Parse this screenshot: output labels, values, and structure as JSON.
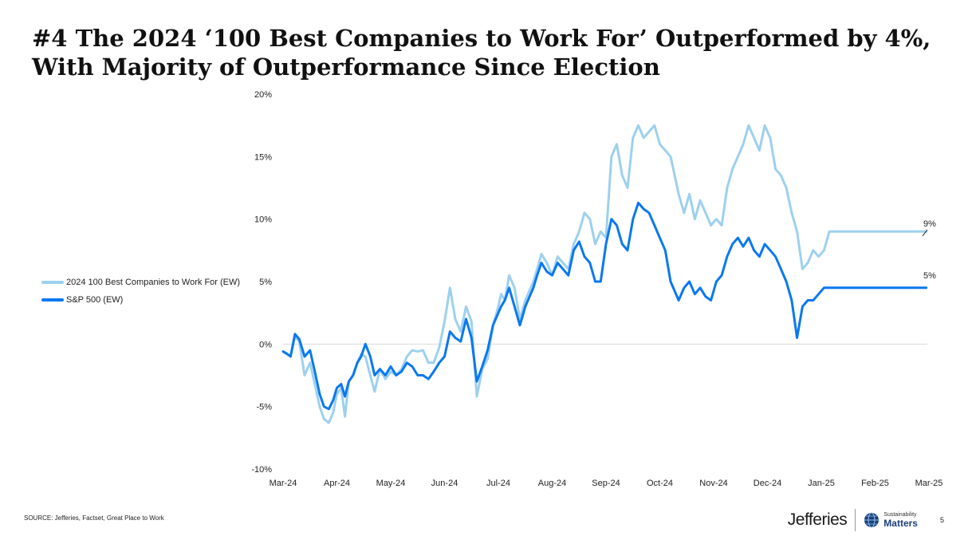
{
  "title": "#4 The 2024 ‘100 Best Companies to Work For’ Outperformed by 4%, With Majority of Outperformance Since Election",
  "legend": {
    "items": [
      {
        "label": "2024 100 Best Companies to Work For (EW)",
        "color": "#9dd0ef"
      },
      {
        "label": "S&P 500 (EW)",
        "color": "#0a78f0"
      }
    ]
  },
  "source": "SOURCE: Jefferies, Factset, Great Place to Work",
  "footer": {
    "brand": "Jefferies",
    "sustainability_line1": "Sustainability",
    "sustainability_line2": "Matters",
    "page_number": "5"
  },
  "chart_data": {
    "type": "line",
    "title": "",
    "xlabel": "",
    "ylabel": "",
    "ylim": [
      -10,
      20
    ],
    "y_ticks": [
      -10,
      -5,
      0,
      5,
      10,
      15,
      20
    ],
    "y_tick_labels": [
      "-10%",
      "-5%",
      "0%",
      "5%",
      "10%",
      "15%",
      "20%"
    ],
    "x_tick_labels": [
      "Mar-24",
      "Apr-24",
      "May-24",
      "Jun-24",
      "Jul-24",
      "Aug-24",
      "Sep-24",
      "Oct-24",
      "Nov-24",
      "Dec-24",
      "Jan-25",
      "Feb-25",
      "Mar-25"
    ],
    "x_range": [
      "Mar-24",
      "Mar-25"
    ],
    "grid": false,
    "legend_position": "left",
    "end_labels": [
      "9%",
      "5%"
    ],
    "series": [
      {
        "name": "2024 100 Best Companies to Work For (EW)",
        "color": "#9dd0ef",
        "x": [
          0,
          0.08,
          0.14,
          0.22,
          0.3,
          0.4,
          0.5,
          0.58,
          0.68,
          0.76,
          0.85,
          0.93,
          1.0,
          1.08,
          1.15,
          1.22,
          1.3,
          1.38,
          1.45,
          1.53,
          1.62,
          1.7,
          1.8,
          1.9,
          2.0,
          2.1,
          2.2,
          2.3,
          2.4,
          2.5,
          2.6,
          2.7,
          2.8,
          2.9,
          3.0,
          3.1,
          3.2,
          3.3,
          3.4,
          3.5,
          3.6,
          3.7,
          3.8,
          3.9,
          4.0,
          4.05,
          4.12,
          4.2,
          4.3,
          4.4,
          4.5,
          4.6,
          4.65,
          4.72,
          4.8,
          4.9,
          5.0,
          5.1,
          5.2,
          5.3,
          5.4,
          5.5,
          5.6,
          5.7,
          5.8,
          5.9,
          6.0,
          6.1,
          6.2,
          6.3,
          6.4,
          6.5,
          6.6,
          6.7,
          6.8,
          6.9,
          7.0,
          7.1,
          7.2,
          7.3,
          7.35,
          7.45,
          7.55,
          7.65,
          7.75,
          7.85,
          7.95,
          8.05,
          8.15,
          8.25,
          8.35,
          8.45,
          8.55,
          8.65,
          8.75,
          8.85,
          8.95,
          9.05,
          9.15,
          9.25,
          9.35,
          9.45,
          9.55,
          9.65,
          9.75,
          9.85,
          9.95,
          10.05,
          10.15,
          10.25,
          10.35,
          10.45,
          10.55,
          10.65,
          10.75,
          10.85,
          10.95,
          11.05,
          11.15,
          11.25,
          11.35,
          11.45,
          11.55,
          11.65,
          11.75,
          11.85,
          11.95
        ],
        "values": [
          -0.6,
          -0.8,
          -1.0,
          0.6,
          0.2,
          -2.5,
          -1.5,
          -3.0,
          -5.0,
          -6.0,
          -6.3,
          -5.5,
          -4.0,
          -3.5,
          -5.8,
          -3.0,
          -2.5,
          -1.5,
          -0.8,
          -1.0,
          -2.5,
          -3.8,
          -2.0,
          -2.8,
          -2.2,
          -2.5,
          -2.0,
          -1.0,
          -0.5,
          -0.6,
          -0.5,
          -1.5,
          -1.5,
          -0.3,
          1.8,
          4.5,
          2.0,
          1.0,
          3.0,
          1.8,
          -4.2,
          -2.0,
          -1.2,
          1.5,
          3.0,
          4.0,
          3.5,
          5.5,
          4.5,
          2.0,
          3.5,
          4.5,
          5.0,
          6.0,
          7.2,
          6.5,
          5.5,
          7.0,
          6.5,
          6.0,
          8.0,
          9.0,
          10.5,
          10.0,
          8.0,
          9.0,
          8.5,
          15.0,
          16.0,
          13.5,
          12.5,
          16.5,
          17.5,
          16.5,
          17.0,
          17.5,
          16.0,
          15.5,
          15.0,
          13.0,
          12.0,
          10.5,
          12.0,
          10.0,
          11.5,
          10.5,
          9.5,
          10.0,
          9.5,
          12.5,
          14.0,
          15.0,
          16.0,
          17.5,
          16.5,
          15.5,
          17.5,
          16.5,
          14.0,
          13.5,
          12.5,
          10.5,
          9.0,
          6.0,
          6.5,
          7.5,
          7.0,
          7.5,
          9.0,
          9.0,
          9.0,
          9.0,
          9.0,
          9.0,
          9.0,
          9.0,
          9.0,
          9.0,
          9.0,
          9.0,
          9.0,
          9.0,
          9.0,
          9.0,
          9.0,
          9.0,
          9.0
        ]
      },
      {
        "name": "S&P 500 (EW)",
        "color": "#0a78f0",
        "x": [
          0,
          0.08,
          0.14,
          0.22,
          0.3,
          0.4,
          0.5,
          0.58,
          0.68,
          0.76,
          0.85,
          0.93,
          1.0,
          1.08,
          1.15,
          1.22,
          1.3,
          1.38,
          1.45,
          1.53,
          1.62,
          1.7,
          1.8,
          1.9,
          2.0,
          2.1,
          2.2,
          2.3,
          2.4,
          2.5,
          2.6,
          2.7,
          2.8,
          2.9,
          3.0,
          3.1,
          3.2,
          3.3,
          3.4,
          3.5,
          3.6,
          3.7,
          3.8,
          3.9,
          4.0,
          4.05,
          4.12,
          4.2,
          4.3,
          4.4,
          4.5,
          4.6,
          4.65,
          4.72,
          4.8,
          4.9,
          5.0,
          5.1,
          5.2,
          5.3,
          5.4,
          5.5,
          5.6,
          5.7,
          5.8,
          5.9,
          6.0,
          6.1,
          6.2,
          6.3,
          6.4,
          6.5,
          6.6,
          6.7,
          6.8,
          6.9,
          7.0,
          7.1,
          7.2,
          7.3,
          7.35,
          7.45,
          7.55,
          7.65,
          7.75,
          7.85,
          7.95,
          8.05,
          8.15,
          8.25,
          8.35,
          8.45,
          8.55,
          8.65,
          8.75,
          8.85,
          8.95,
          9.05,
          9.15,
          9.25,
          9.35,
          9.45,
          9.55,
          9.65,
          9.75,
          9.85,
          9.95,
          10.05,
          10.15,
          10.25,
          10.35,
          10.45,
          10.55,
          10.65,
          10.75,
          10.85,
          10.95,
          11.05,
          11.15,
          11.25,
          11.35,
          11.45,
          11.55,
          11.65,
          11.75,
          11.85,
          11.95
        ],
        "values": [
          -0.6,
          -0.8,
          -1.0,
          0.8,
          0.4,
          -1.0,
          -0.5,
          -2.0,
          -4.0,
          -5.0,
          -5.2,
          -4.5,
          -3.5,
          -3.2,
          -4.2,
          -3.0,
          -2.5,
          -1.5,
          -1.0,
          0.0,
          -1.0,
          -2.5,
          -2.0,
          -2.5,
          -1.8,
          -2.5,
          -2.2,
          -1.5,
          -1.8,
          -2.5,
          -2.5,
          -2.8,
          -2.2,
          -1.5,
          -1.0,
          1.0,
          0.5,
          0.2,
          2.0,
          0.5,
          -3.0,
          -1.8,
          -0.5,
          1.5,
          2.5,
          3.0,
          3.5,
          4.5,
          3.0,
          1.5,
          3.0,
          4.0,
          4.5,
          5.5,
          6.5,
          5.8,
          5.5,
          6.5,
          6.0,
          5.5,
          7.5,
          8.2,
          7.0,
          6.5,
          5.0,
          5.0,
          8.0,
          10.0,
          9.5,
          8.0,
          7.5,
          10.0,
          11.3,
          10.8,
          10.5,
          9.5,
          8.5,
          7.5,
          5.0,
          4.0,
          3.5,
          4.5,
          5.0,
          4.0,
          4.5,
          3.8,
          3.5,
          5.0,
          5.5,
          7.0,
          8.0,
          8.5,
          7.8,
          8.5,
          7.5,
          7.0,
          8.0,
          7.5,
          7.0,
          6.0,
          5.0,
          3.5,
          0.5,
          3.0,
          3.5,
          3.5,
          4.0,
          4.5,
          4.5,
          4.5,
          4.5,
          4.5,
          4.5,
          4.5,
          4.5,
          4.5,
          4.5,
          4.5,
          4.5,
          4.5,
          4.5,
          4.5,
          4.5,
          4.5,
          4.5,
          4.5,
          4.5
        ]
      }
    ]
  }
}
